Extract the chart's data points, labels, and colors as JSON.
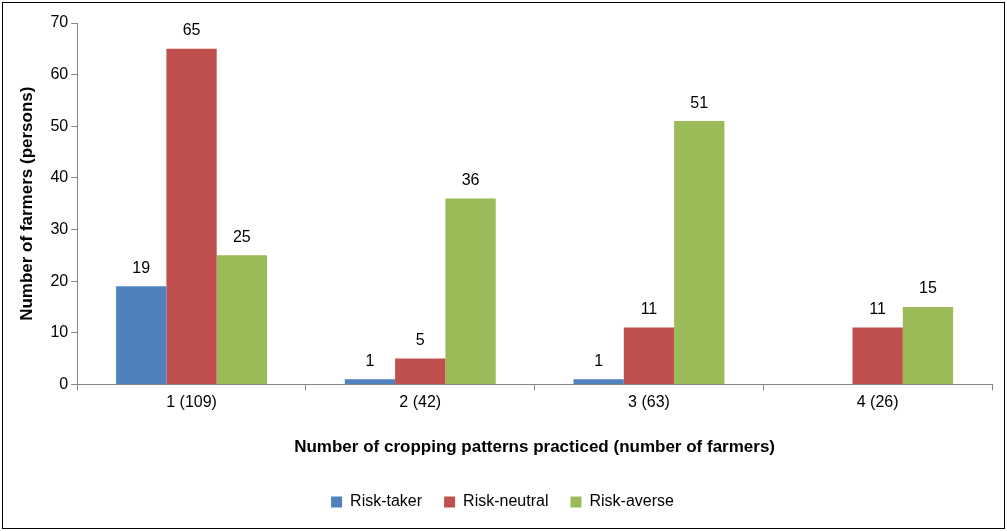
{
  "chart_data": {
    "type": "bar",
    "xlabel": "Number of cropping patterns practiced (number of farmers)",
    "ylabel": "Number of farmers (persons)",
    "categories": [
      "1 (109)",
      "2 (42)",
      "3 (63)",
      "4 (26)"
    ],
    "series": [
      {
        "name": "Risk-taker",
        "color": "#4f81bd",
        "values": [
          19,
          1,
          1,
          null
        ],
        "value_labels": [
          "19",
          "1",
          "1",
          null
        ]
      },
      {
        "name": "Risk-neutral",
        "color": "#c0504d",
        "values": [
          65,
          5,
          11,
          11
        ],
        "value_labels": [
          "65",
          "5",
          "11",
          "11"
        ]
      },
      {
        "name": "Risk-averse",
        "color": "#9bbb59",
        "values": [
          25,
          36,
          51,
          15
        ],
        "value_labels": [
          "25",
          "36",
          "51",
          "15"
        ]
      }
    ],
    "ylim": [
      0,
      70
    ],
    "yticks": [
      0,
      10,
      20,
      30,
      40,
      50,
      60,
      70
    ],
    "grid": false,
    "legend": "bottom"
  }
}
